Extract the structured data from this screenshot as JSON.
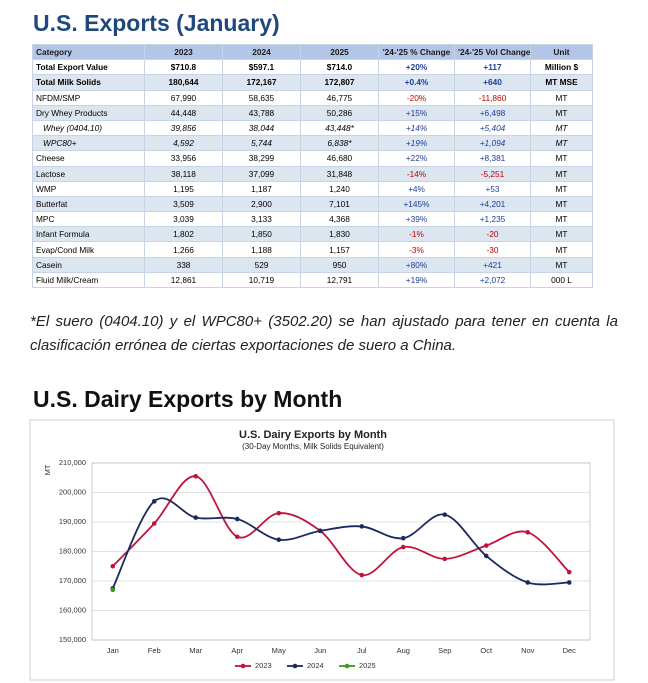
{
  "header": {
    "title": "U.S. Exports (January)"
  },
  "table": {
    "columns": [
      "Category",
      "2023",
      "2024",
      "2025",
      "'24-'25 % Change",
      "'24-'25 Vol Change",
      "Unit"
    ],
    "rows": [
      [
        "Total Export Value",
        "$710.8",
        "$597.1",
        "$714.0",
        "+20%",
        "+117",
        "Million $"
      ],
      [
        "Total Milk Solids",
        "180,644",
        "172,167",
        "172,807",
        "+0.4%",
        "+640",
        "MT MSE"
      ],
      [
        "NFDM/SMP",
        "67,990",
        "58,635",
        "46,775",
        "-20%",
        "-11,860",
        "MT"
      ],
      [
        "Dry Whey Products",
        "44,448",
        "43,788",
        "50,286",
        "+15%",
        "+6,498",
        "MT"
      ],
      [
        "Whey (0404.10)",
        "39,856",
        "38,044",
        "43,448*",
        "+14%",
        "+5,404",
        "MT"
      ],
      [
        "WPC80+",
        "4,592",
        "5,744",
        "6,838*",
        "+19%",
        "+1,094",
        "MT"
      ],
      [
        "Cheese",
        "33,956",
        "38,299",
        "46,680",
        "+22%",
        "+8,381",
        "MT"
      ],
      [
        "Lactose",
        "38,118",
        "37,099",
        "31,848",
        "-14%",
        "-5,251",
        "MT"
      ],
      [
        "WMP",
        "1,195",
        "1,187",
        "1,240",
        "+4%",
        "+53",
        "MT"
      ],
      [
        "Butterfat",
        "3,509",
        "2,900",
        "7,101",
        "+145%",
        "+4,201",
        "MT"
      ],
      [
        "MPC",
        "3,039",
        "3,133",
        "4,368",
        "+39%",
        "+1,235",
        "MT"
      ],
      [
        "Infant Formula",
        "1,802",
        "1,850",
        "1,830",
        "-1%",
        "-20",
        "MT"
      ],
      [
        "Evap/Cond Milk",
        "1,266",
        "1,188",
        "1,157",
        "-3%",
        "-30",
        "MT"
      ],
      [
        "Casein",
        "338",
        "529",
        "950",
        "+80%",
        "+421",
        "MT"
      ],
      [
        "Fluid Milk/Cream",
        "12,861",
        "10,719",
        "12,791",
        "+19%",
        "+2,072",
        "000 L"
      ]
    ]
  },
  "footnote": "*El suero (0404.10) y el WPC80+ (3502.20) se han ajustado para tener en cuenta la clasificación errónea de ciertas exportaciones de suero a China.",
  "chart_heading": "U.S. Dairy Exports by Month",
  "chart_data": {
    "type": "line",
    "title": "U.S. Dairy Exports by Month",
    "subtitle": "(30-Day Months, Milk Solids Equivalent)",
    "y_label": "MT",
    "categories": [
      "Jan",
      "Feb",
      "Mar",
      "Apr",
      "May",
      "Jun",
      "Jul",
      "Aug",
      "Sep",
      "Oct",
      "Nov",
      "Dec"
    ],
    "series": [
      {
        "name": "2023",
        "color": "#c0143c",
        "values": [
          175000,
          189500,
          205500,
          185000,
          193000,
          187000,
          172000,
          181500,
          177500,
          182000,
          186500,
          173000
        ]
      },
      {
        "name": "2024",
        "color": "#1a2a5e",
        "values": [
          167500,
          197000,
          191500,
          191000,
          184000,
          187000,
          188500,
          184500,
          192500,
          178500,
          169500,
          169500
        ]
      },
      {
        "name": "2025",
        "color": "#3a9a1a",
        "values": [
          167000,
          null,
          null,
          null,
          null,
          null,
          null,
          null,
          null,
          null,
          null,
          null
        ]
      }
    ],
    "ylim": [
      150000,
      210000
    ],
    "yticks": [
      {
        "value": 150000,
        "label": "150,000"
      },
      {
        "value": 160000,
        "label": "160,000"
      },
      {
        "value": 170000,
        "label": "170,000"
      },
      {
        "value": 180000,
        "label": "180,000"
      },
      {
        "value": 190000,
        "label": "190,000"
      },
      {
        "value": 200000,
        "label": "200,000"
      },
      {
        "value": 210000,
        "label": "210,000"
      }
    ],
    "grid": true,
    "legend": "bottom"
  }
}
